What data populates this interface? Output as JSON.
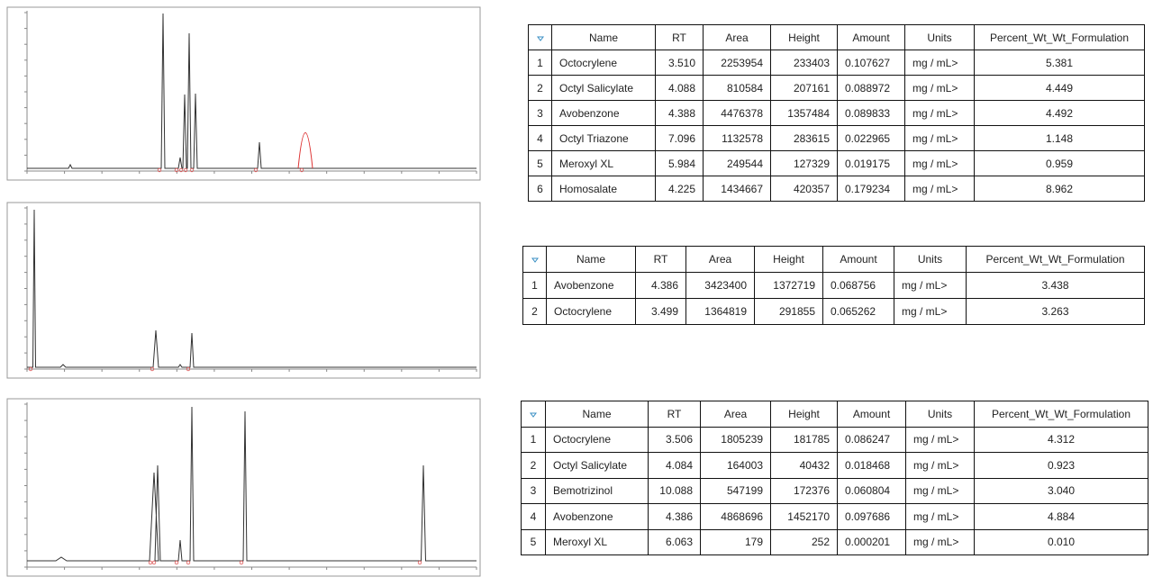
{
  "tables": [
    {
      "header": [
        "Name",
        "RT",
        "Area",
        "Height",
        "Amount",
        "Units",
        "Percent_Wt_Wt_Formulation"
      ],
      "rows": [
        [
          "1",
          "Octocrylene",
          "3.510",
          "2253954",
          "233403",
          "0.107627",
          "mg / mL>",
          "5.381"
        ],
        [
          "2",
          "Octyl Salicylate",
          "4.088",
          "810584",
          "207161",
          "0.088972",
          "mg / mL>",
          "4.449"
        ],
        [
          "3",
          "Avobenzone",
          "4.388",
          "4476378",
          "1357484",
          "0.089833",
          "mg / mL>",
          "4.492"
        ],
        [
          "4",
          "Octyl Triazone",
          "7.096",
          "1132578",
          "283615",
          "0.022965",
          "mg / mL>",
          "1.148"
        ],
        [
          "5",
          "Meroxyl XL",
          "5.984",
          "249544",
          "127329",
          "0.019175",
          "mg / mL>",
          "0.959"
        ],
        [
          "6",
          "Homosalate",
          "4.225",
          "1434667",
          "420357",
          "0.179234",
          "mg / mL>",
          "8.962"
        ]
      ]
    },
    {
      "header": [
        "Name",
        "RT",
        "Area",
        "Height",
        "Amount",
        "Units",
        "Percent_Wt_Wt_Formulation"
      ],
      "rows": [
        [
          "1",
          "Avobenzone",
          "4.386",
          "3423400",
          "1372719",
          "0.068756",
          "mg / mL>",
          "3.438"
        ],
        [
          "2",
          "Octocrylene",
          "3.499",
          "1364819",
          "291855",
          "0.065262",
          "mg / mL>",
          "3.263"
        ]
      ]
    },
    {
      "header": [
        "Name",
        "RT",
        "Area",
        "Height",
        "Amount",
        "Units",
        "Percent_Wt_Wt_Formulation"
      ],
      "rows": [
        [
          "1",
          "Octocrylene",
          "3.506",
          "1805239",
          "181785",
          "0.086247",
          "mg / mL>",
          "4.312"
        ],
        [
          "2",
          "Octyl Salicylate",
          "4.084",
          "164003",
          "40432",
          "0.018468",
          "mg / mL>",
          "0.923"
        ],
        [
          "3",
          "Bemotrizinol",
          "10.088",
          "547199",
          "172376",
          "0.060804",
          "mg / mL>",
          "3.040"
        ],
        [
          "4",
          "Avobenzone",
          "4.386",
          "4868696",
          "1452170",
          "0.097686",
          "mg / mL>",
          "4.884"
        ],
        [
          "5",
          "Meroxyl XL",
          "6.063",
          "179",
          "252",
          "0.000201",
          "mg / mL>",
          "0.010"
        ]
      ]
    }
  ]
}
